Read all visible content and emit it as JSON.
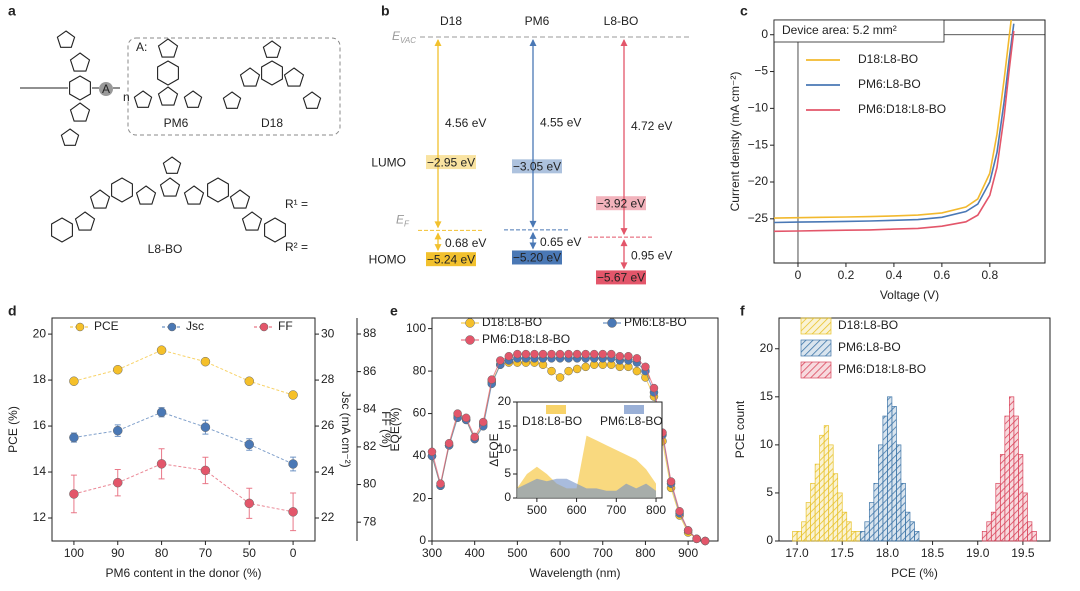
{
  "panel_labels": [
    "a",
    "b",
    "c",
    "d",
    "e",
    "f"
  ],
  "structures": {
    "unit": "A",
    "repeat": "n",
    "group_label": "A:",
    "labels": [
      "PM6",
      "D18",
      "L8-BO"
    ],
    "r1": "R¹ =",
    "r2": "R² ="
  },
  "chart_data": [
    {
      "type": "energy_levels",
      "categories": [
        "LUMO",
        "HOMO"
      ],
      "vacuum_label": {
        "text": "E",
        "sub": "VAC"
      },
      "fermi_label": {
        "text": "E",
        "sub": "F"
      },
      "series": [
        {
          "name": "D18",
          "color": "#f2c12e",
          "values": [
            -2.95,
            -5.24
          ],
          "value_labels": [
            "−2.95 eV",
            "−5.24 eV"
          ],
          "fermi": -4.56,
          "gap_labels": [
            "4.56 eV",
            "0.68 eV"
          ]
        },
        {
          "name": "PM6",
          "color": "#4a78b5",
          "values": [
            -3.05,
            -5.2
          ],
          "value_labels": [
            "−3.05 eV",
            "−5.20 eV"
          ],
          "fermi": -4.55,
          "gap_labels": [
            "4.55 eV",
            "0.65 eV"
          ]
        },
        {
          "name": "L8-BO",
          "color": "#e3566a",
          "values": [
            -3.92,
            -5.67
          ],
          "value_labels": [
            "−3.92 eV",
            "−5.67 eV"
          ],
          "fermi": -4.72,
          "gap_labels": [
            "4.72 eV",
            "0.95 eV"
          ]
        }
      ]
    },
    {
      "type": "line",
      "xlabel": "Voltage (V)",
      "ylabel": "Current density (mA cm⁻²)",
      "annotation": "Device area: 5.2 mm²",
      "x": [
        -0.1,
        0,
        0.1,
        0.2,
        0.3,
        0.4,
        0.5,
        0.6,
        0.7,
        0.75,
        0.8,
        0.83,
        0.86,
        0.88,
        0.9
      ],
      "xlim": [
        -0.1,
        1.03
      ],
      "xticks": [
        0,
        0.2,
        0.4,
        0.6,
        0.8
      ],
      "ylim": [
        -31,
        2
      ],
      "yticks": [
        {
          "value": -25,
          "label": "−25"
        },
        {
          "value": -20,
          "label": "−20"
        },
        {
          "value": -15,
          "label": "−15"
        },
        {
          "value": -10,
          "label": "−10"
        },
        {
          "value": -5,
          "label": "−5"
        },
        0
      ],
      "markers": false,
      "legend": "upper left",
      "series": [
        {
          "name": "D18:L8-BO",
          "color": "#f2b92e",
          "values": [
            -24.9,
            -24.85,
            -24.8,
            -24.75,
            -24.7,
            -24.6,
            -24.5,
            -24.2,
            -23.4,
            -22.3,
            -18.8,
            -13.5,
            -6,
            -0.5,
            5
          ]
        },
        {
          "name": "PM6:L8-BO",
          "color": "#4a78b5",
          "values": [
            -25.5,
            -25.45,
            -25.4,
            -25.35,
            -25.3,
            -25.2,
            -25.1,
            -24.8,
            -24,
            -23,
            -20,
            -16,
            -9,
            -3.5,
            1.5
          ]
        },
        {
          "name": "PM6:D18:L8-BO",
          "color": "#e3566a",
          "values": [
            -26.7,
            -26.65,
            -26.6,
            -26.55,
            -26.5,
            -26.4,
            -26.3,
            -26,
            -25.4,
            -24.5,
            -21.8,
            -18,
            -11,
            -5,
            0.5
          ]
        }
      ]
    },
    {
      "type": "line",
      "categories": [
        "100",
        "90",
        "80",
        "70",
        "50",
        "0"
      ],
      "xlabel": "PM6 content in the donor (%)",
      "ylabel": "PCE (%)",
      "y2label": "Jsc (mA cm⁻²)",
      "y3label": "FF (%)",
      "ylim": [
        11,
        20.7
      ],
      "yticks": [
        12,
        14,
        16,
        18,
        20
      ],
      "y2lim": [
        21,
        30.7
      ],
      "y2ticks": [
        22,
        24,
        26,
        28,
        30
      ],
      "y3lim": [
        77,
        88.85
      ],
      "y3ticks": [
        78,
        80,
        82,
        84,
        86,
        88
      ],
      "markers": true,
      "line_style": "dashed",
      "legend": "top",
      "series": [
        {
          "name": "PCE",
          "color": "#f5c02a",
          "values": [
            17.95,
            18.45,
            19.3,
            18.8,
            17.95,
            17.35
          ]
        },
        {
          "name": "Jsc",
          "color": "#4a78b5",
          "axis": "y2",
          "values": [
            25.5,
            25.8,
            26.6,
            25.95,
            25.2,
            24.35
          ],
          "errors": [
            0.2,
            0.25,
            0.2,
            0.3,
            0.25,
            0.3
          ]
        },
        {
          "name": "FF",
          "color": "#e3566a",
          "axis": "y3",
          "values": [
            79.5,
            80.1,
            81.1,
            80.75,
            79.0,
            78.55
          ],
          "errors": [
            1.0,
            0.7,
            0.8,
            0.7,
            0.8,
            1.0
          ]
        }
      ]
    },
    {
      "type": "line",
      "xlabel": "Wavelength (nm)",
      "ylabel": "EQE(%)",
      "x": [
        300,
        320,
        340,
        360,
        380,
        400,
        420,
        440,
        460,
        480,
        500,
        520,
        540,
        560,
        580,
        600,
        620,
        640,
        660,
        680,
        700,
        720,
        740,
        760,
        780,
        800,
        820,
        840,
        860,
        880,
        900,
        920,
        940
      ],
      "xlim": [
        300,
        970
      ],
      "xticks": [
        300,
        400,
        500,
        600,
        700,
        800,
        900
      ],
      "ylim": [
        0,
        105
      ],
      "yticks": [
        0,
        20,
        40,
        60,
        80,
        100
      ],
      "markers": true,
      "legend": "top",
      "series": [
        {
          "name": "D18:L8-BO",
          "color": "#f5c02a",
          "values": [
            40,
            26,
            45,
            59,
            57,
            48,
            55,
            75,
            83,
            84,
            84,
            84,
            84,
            83,
            80,
            77,
            80,
            81,
            82,
            83,
            83,
            83,
            82,
            82,
            80,
            77,
            68,
            47,
            25,
            12,
            4,
            1,
            0
          ]
        },
        {
          "name": "PM6:L8-BO",
          "color": "#4a78b5",
          "values": [
            40,
            26,
            45,
            58,
            57,
            48,
            54,
            74,
            83,
            85,
            86,
            86,
            86,
            86,
            86,
            86,
            86,
            86,
            86,
            86,
            86,
            86,
            85,
            85,
            84,
            80,
            70,
            50,
            27,
            13,
            5,
            1,
            0
          ]
        },
        {
          "name": "PM6:D18:L8-BO",
          "color": "#e3566a",
          "values": [
            42,
            27,
            46,
            60,
            58,
            49,
            56,
            76,
            85,
            87,
            88,
            88,
            88,
            88,
            88,
            88,
            88,
            88,
            88,
            88,
            88,
            88,
            87,
            87,
            86,
            82,
            72,
            51,
            28,
            14,
            5,
            1,
            0
          ]
        }
      ]
    },
    {
      "type": "area",
      "ylabel": "ΔEQE",
      "x": [
        450,
        475,
        500,
        525,
        550,
        575,
        600,
        625,
        650,
        675,
        700,
        725,
        750,
        775,
        800
      ],
      "xlim": [
        450,
        815
      ],
      "xticks": [
        500,
        600,
        700,
        800
      ],
      "ylim": [
        0,
        20
      ],
      "yticks": [
        0,
        5,
        10,
        15,
        20
      ],
      "legend": "top",
      "series": [
        {
          "name": "D18:L8-BO",
          "color": "#f5c02a",
          "values": [
            2,
            5,
            6.5,
            5,
            3,
            2,
            2,
            13,
            12,
            11,
            10,
            9,
            8,
            6,
            3
          ]
        },
        {
          "name": "PM6:L8-BO",
          "color": "#6f8fc6",
          "values": [
            2,
            3,
            4,
            3.5,
            4,
            4,
            3,
            2,
            2,
            1.5,
            1.5,
            3,
            2,
            3,
            1.5
          ]
        }
      ]
    },
    {
      "type": "histogram",
      "xlabel": "PCE (%)",
      "ylabel": "PCE count",
      "xlim": [
        16.8,
        19.8
      ],
      "xticks": [
        {
          "value": 17,
          "label": "17.0"
        },
        17.5,
        {
          "value": 18,
          "label": "18.0"
        },
        18.5,
        {
          "value": 19,
          "label": "19.0"
        },
        19.5
      ],
      "ylim": [
        0,
        23.2
      ],
      "yticks": [
        0,
        5,
        10,
        15,
        20
      ],
      "legend": "upper left",
      "series": [
        {
          "name": "D18:L8-BO",
          "color": "#e8c22a",
          "bins": [
            16.95,
            17,
            17.05,
            17.1,
            17.15,
            17.2,
            17.25,
            17.3,
            17.35,
            17.4,
            17.45,
            17.5,
            17.55,
            17.6,
            17.65,
            17.7
          ],
          "values": [
            1,
            1,
            2,
            4,
            6,
            8,
            11,
            12,
            10,
            7,
            5,
            3,
            2,
            1,
            1
          ]
        },
        {
          "name": "PM6:L8-BO",
          "color": "#3f76a8",
          "bins": [
            17.7,
            17.75,
            17.8,
            17.85,
            17.9,
            17.95,
            18,
            18.05,
            18.1,
            18.15,
            18.2,
            18.25,
            18.3,
            18.35
          ],
          "values": [
            1,
            2,
            4,
            6,
            10,
            13,
            15,
            14,
            10,
            6,
            3,
            2,
            1
          ]
        },
        {
          "name": "PM6:D18:L8-BO",
          "color": "#d9455c",
          "bins": [
            19.05,
            19.1,
            19.15,
            19.2,
            19.25,
            19.3,
            19.35,
            19.4,
            19.45,
            19.5,
            19.55,
            19.6,
            19.65
          ],
          "values": [
            1,
            2,
            3,
            6,
            9,
            13,
            15,
            13,
            9,
            5,
            2,
            1
          ]
        }
      ]
    }
  ]
}
